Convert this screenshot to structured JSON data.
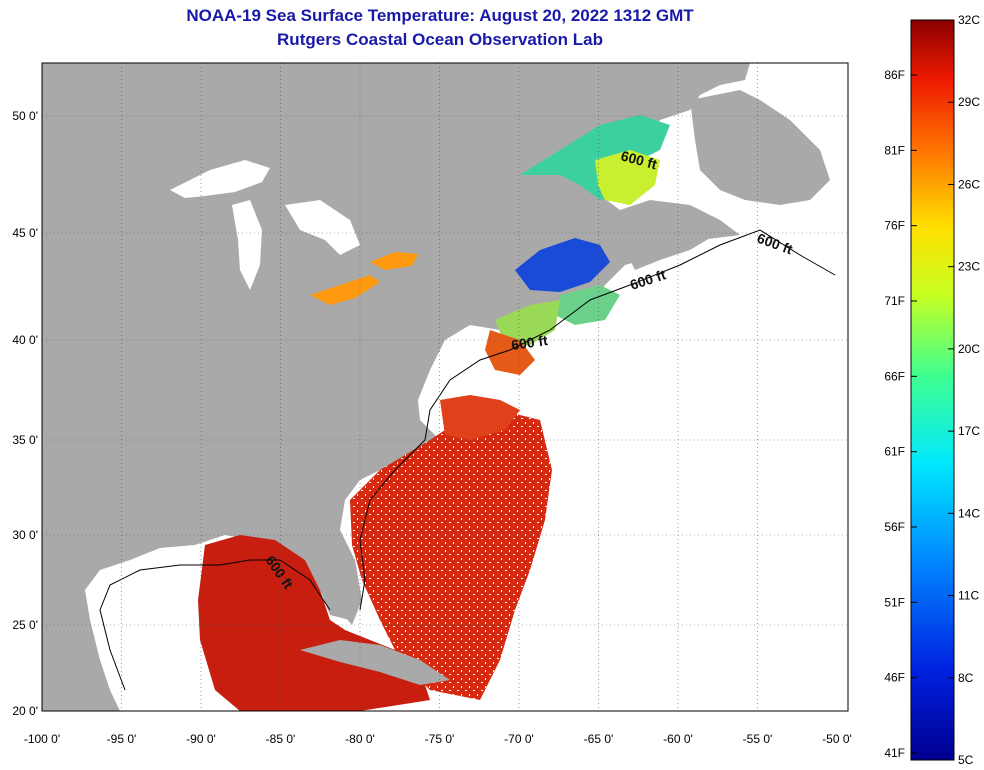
{
  "title": {
    "line1": "NOAA-19 Sea Surface Temperature:  August 20, 2022 1312 GMT",
    "line2": "Rutgers Coastal Ocean Observation Lab"
  },
  "axes": {
    "lon_labels": [
      "-100 0'",
      "-95 0'",
      "-90 0'",
      "-85 0'",
      "-80 0'",
      "-75 0'",
      "-70 0'",
      "-65 0'",
      "-60 0'",
      "-55 0'",
      "-50 0'"
    ],
    "lat_labels": [
      "50 0'",
      "45 0'",
      "40 0'",
      "35 0'",
      "30 0'",
      "25 0'",
      "20 0'"
    ]
  },
  "colorbar": {
    "celsius": [
      "32C",
      "29C",
      "26C",
      "23C",
      "20C",
      "17C",
      "14C",
      "11C",
      "8C",
      "5C"
    ],
    "fahrenheit": [
      "86F",
      "81F",
      "76F",
      "71F",
      "66F",
      "61F",
      "56F",
      "51F",
      "46F",
      "41F"
    ]
  },
  "contours": {
    "labels": [
      "600 ft",
      "600 ft",
      "600 ft",
      "600 ft",
      "600 ft"
    ]
  },
  "colors": {
    "land": "#a9a9a9",
    "cloud": "#ffffff",
    "title": "#1a1aa8",
    "warm": "#d42a10",
    "cold": "#1a3fd0"
  }
}
